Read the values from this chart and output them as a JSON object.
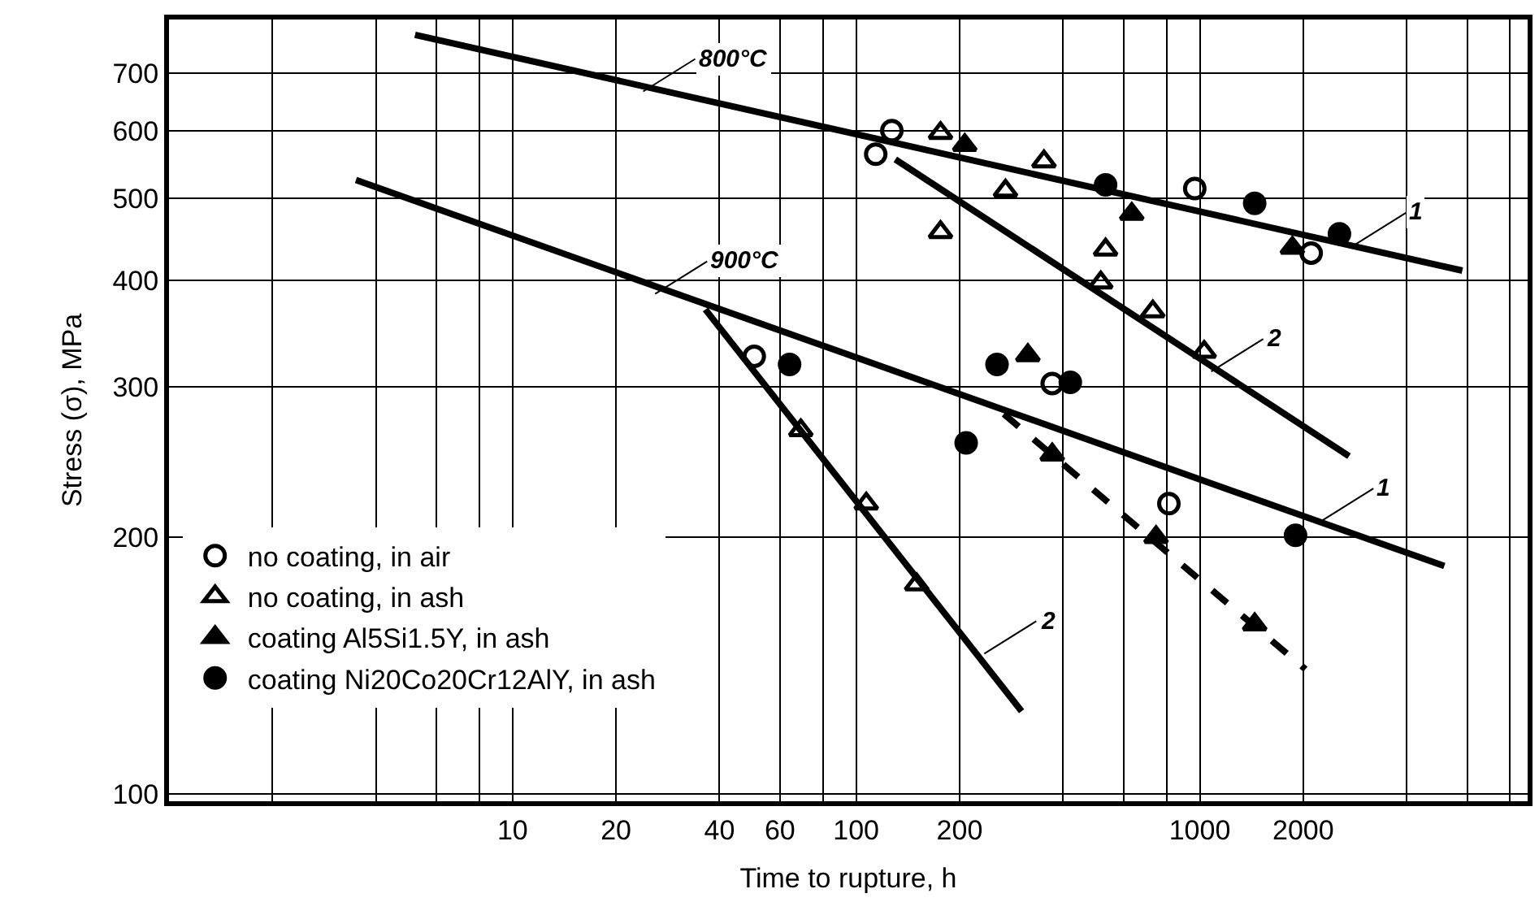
{
  "chart_data": {
    "type": "scatter",
    "xlabel": "Time to rupture, h",
    "ylabel": "Stress (σ), MPa",
    "log": "xy",
    "grid": true,
    "legend": "bottom left",
    "xlim": [
      1,
      9000
    ],
    "ylim": [
      98,
      810
    ],
    "xticks": [
      {
        "value": 2,
        "label": null
      },
      {
        "value": 4,
        "label": null
      },
      {
        "value": 6,
        "label": null
      },
      {
        "value": 8,
        "label": null
      },
      10,
      20,
      40,
      60,
      {
        "value": 80,
        "label": null
      },
      100,
      200,
      {
        "value": 400,
        "label": null
      },
      {
        "value": 600,
        "label": null
      },
      {
        "value": 800,
        "label": null
      },
      1000,
      2000,
      {
        "value": 4000,
        "label": null
      },
      {
        "value": 6000,
        "label": null
      },
      {
        "value": 8000,
        "label": null
      }
    ],
    "yticks": [
      100,
      200,
      300,
      400,
      500,
      600,
      700
    ],
    "series": [
      {
        "name": "no coating, in air",
        "marker": "circle-open",
        "color": "#000000",
        "x": [
          127,
          114,
          967,
          2110,
          50.5,
          372,
          813
        ],
        "values": [
          600,
          563,
          513,
          431,
          326,
          303,
          219
        ]
      },
      {
        "name": "no coating, in ash",
        "marker": "triangle-open",
        "color": "#000000",
        "x": [
          176,
          352,
          272,
          176,
          532,
          515,
          730,
          1030,
          69,
          107,
          150
        ],
        "values": [
          596,
          552,
          510,
          456,
          435,
          398,
          368,
          330,
          267,
          219,
          176
        ]
      },
      {
        "name": "coating Al5Si1.5Y, in ash",
        "marker": "triangle",
        "color": "#000000",
        "x": [
          207,
          634,
          1860,
          316,
          372,
          746,
          1445
        ],
        "values": [
          577,
          479,
          437,
          327,
          250,
          200,
          158
        ]
      },
      {
        "name": "coating Ni20Co20Cr12AlY, in ash",
        "marker": "circle",
        "color": "#000000",
        "x": [
          532,
          1445,
          2550,
          257,
          420,
          64,
          209,
          1900
        ],
        "values": [
          518,
          493,
          454,
          319,
          304,
          319,
          258,
          201
        ]
      },
      {
        "type": "line",
        "line_style": "solid",
        "color": "#000000",
        "x": [
          5.2,
          5810
        ],
        "values": [
          777,
          411
        ]
      },
      {
        "type": "line",
        "line_style": "solid",
        "color": "#000000",
        "x": [
          130,
          2720
        ],
        "values": [
          555,
          249
        ]
      },
      {
        "type": "line",
        "line_style": "solid",
        "color": "#000000",
        "x": [
          3.5,
          5150
        ],
        "values": [
          525,
          185
        ]
      },
      {
        "type": "line",
        "line_style": "solid",
        "color": "#000000",
        "x": [
          36.4,
          303
        ],
        "values": [
          370,
          125
        ]
      },
      {
        "type": "line",
        "line_style": "dashed",
        "color": "#000000",
        "x": [
          269,
          2030
        ],
        "values": [
          279,
          140
        ]
      }
    ],
    "annotations": [
      {
        "text": "800°C",
        "x": 24,
        "y": 667
      },
      {
        "text": "900°C",
        "x": 26,
        "y": 386
      },
      {
        "text": "1",
        "x": 2810,
        "y": 440
      },
      {
        "text": "2",
        "x": 1080,
        "y": 313
      },
      {
        "text": "1",
        "x": 2260,
        "y": 209
      },
      {
        "text": "2",
        "x": 236,
        "y": 146
      }
    ]
  }
}
